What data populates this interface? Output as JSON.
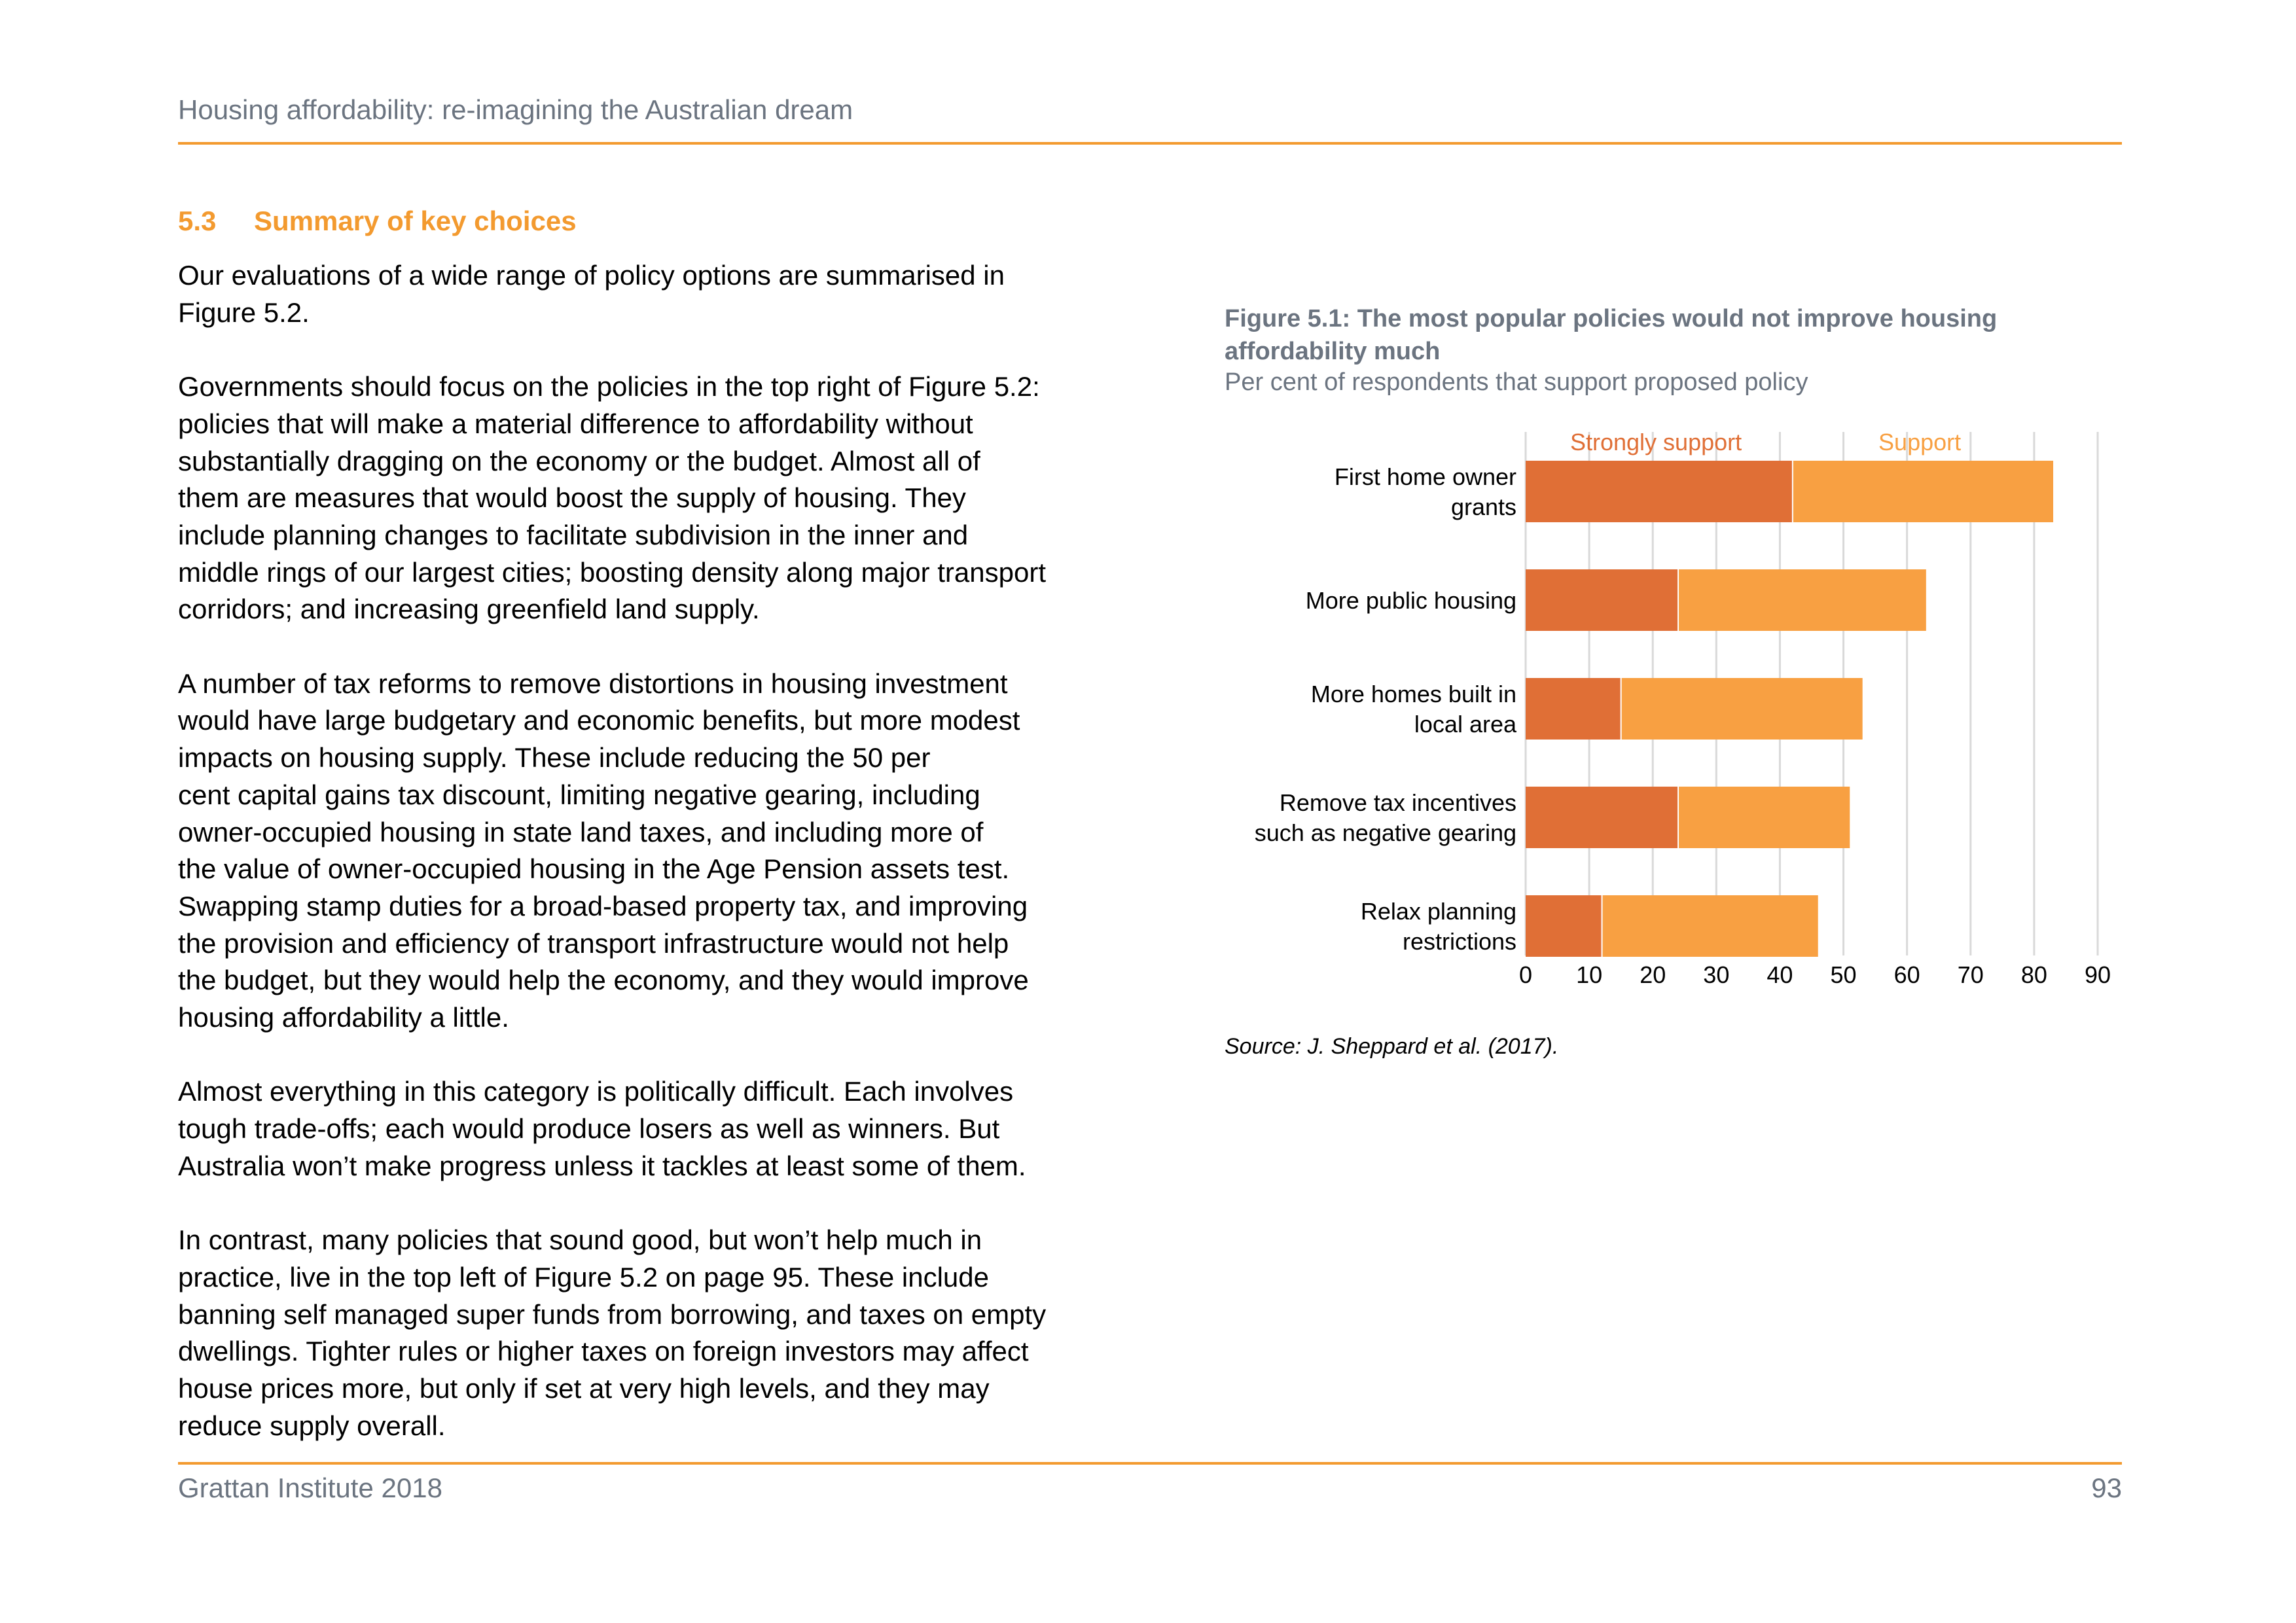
{
  "header": {
    "running_title": "Housing affordability: re-imagining the Australian dream"
  },
  "section": {
    "number": "5.3",
    "title": "Summary of key choices"
  },
  "body": {
    "paragraphs": [
      "Our evaluations of a wide range of policy options are summarised in\nFigure 5.2.",
      "Governments should focus on the policies in the top right of Figure 5.2:\npolicies that will make a material difference to affordability without\nsubstantially dragging on the economy or the budget. Almost all of\nthem are measures that would boost the supply of housing. They\ninclude planning changes to facilitate subdivision in the inner and\nmiddle rings of our largest cities; boosting density along major transport\ncorridors; and increasing greenfield land supply.",
      "A number of tax reforms to remove distortions in housing investment\nwould have large budgetary and economic benefits, but more modest\nimpacts on housing supply. These include reducing the 50 per\ncent capital gains tax discount, limiting negative gearing, including\nowner-occupied housing in state land taxes, and including more of\nthe value of owner-occupied housing in the Age Pension assets test.\nSwapping stamp duties for a broad-based property tax, and improving\nthe provision and efficiency of transport infrastructure would not help\nthe budget, but they would help the economy, and they would improve\nhousing affordability a little.",
      "Almost everything in this category is politically difficult. Each involves\ntough trade-offs; each would produce losers as well as winners. But\nAustralia won’t make progress unless it tackles at least some of them.",
      "In contrast, many policies that sound good, but won’t help much in\npractice, live in the top left of Figure 5.2 on page 95. These include\nbanning self managed super funds from borrowing, and taxes on empty\ndwellings. Tighter rules or higher taxes on foreign investors may affect\nhouse prices more, but only if set at very high levels, and they may\nreduce supply overall."
    ]
  },
  "figure": {
    "title": "Figure 5.1: The most popular policies would not improve housing affordability much",
    "subtitle": "Per cent of respondents that support proposed policy",
    "source": "Source: J. Sheppard et al. (2017)."
  },
  "chart_data": {
    "type": "bar",
    "orientation": "horizontal",
    "stacked": true,
    "categories": [
      [
        "First home owner",
        "grants"
      ],
      [
        "More public housing"
      ],
      [
        "More homes built in",
        "local area"
      ],
      [
        "Remove tax incentives",
        "such as negative gearing"
      ],
      [
        "Relax planning",
        "restrictions"
      ]
    ],
    "series": [
      {
        "name": "Strongly support",
        "color": "#e06f36",
        "values": [
          42,
          24,
          15,
          24,
          12
        ]
      },
      {
        "name": "Support",
        "color": "#f8a042",
        "values": [
          41,
          39,
          38,
          27,
          34
        ]
      }
    ],
    "xlim": [
      0,
      90
    ],
    "xticks": [
      0,
      10,
      20,
      30,
      40,
      50,
      60,
      70,
      80,
      90
    ],
    "grid": true,
    "legend": "top, inside plot"
  },
  "footer": {
    "publisher": "Grattan Institute 2018",
    "page_number": "93"
  },
  "colors": {
    "accent": "#f39a2f",
    "muted_text": "#6b7480",
    "gridline": "#d9d9d9"
  }
}
